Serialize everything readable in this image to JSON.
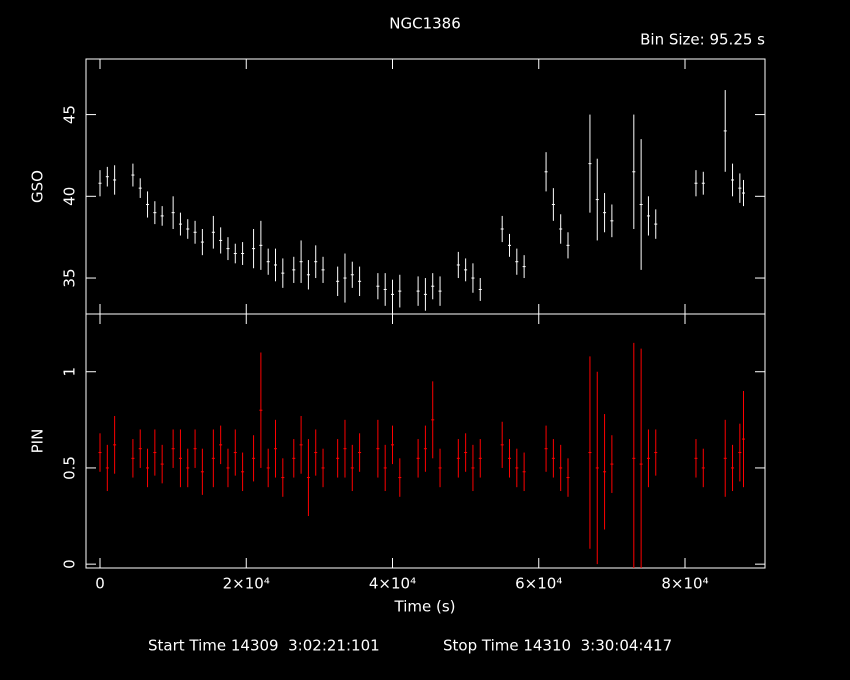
{
  "chart_data": {
    "type": "errorbar",
    "title": "NGC1386",
    "subtitle": "Bin Size: 95.25 s",
    "xlabel": "Time (s)",
    "footer": [
      "Start Time 14309  3:02:21:101",
      "Stop Time 14310  3:30:04:417"
    ],
    "xlim": [
      -1915,
      90940
    ],
    "xticks": [
      0,
      {
        "value": 20000,
        "label": "2×10⁴"
      },
      {
        "value": 40000,
        "label": "4×10⁴"
      },
      {
        "value": 60000,
        "label": "6×10⁴"
      },
      {
        "value": 80000,
        "label": "8×10⁴"
      }
    ],
    "x": [
      0,
      1000,
      2000,
      4500,
      5500,
      6500,
      7500,
      8500,
      10000,
      11000,
      12000,
      13000,
      14000,
      15500,
      16500,
      17500,
      18500,
      19500,
      21000,
      22000,
      23000,
      24000,
      25000,
      26500,
      27500,
      28500,
      29500,
      30500,
      32500,
      33500,
      34500,
      35500,
      38000,
      39000,
      40000,
      41000,
      43500,
      44500,
      45500,
      46500,
      49000,
      50000,
      51000,
      52000,
      55000,
      56000,
      57000,
      58000,
      61000,
      62000,
      63000,
      64000,
      67000,
      68000,
      69000,
      70000,
      73000,
      74000,
      75000,
      76000,
      81500,
      82500,
      85500,
      86500,
      87500,
      88000
    ],
    "panels": [
      {
        "ylabel": "GSO",
        "color": "#ffffff",
        "ylim": [
          32.8,
          48.4
        ],
        "yticks": [
          35,
          40,
          45
        ],
        "values": [
          40.8,
          41.2,
          41.0,
          41.3,
          40.5,
          39.5,
          39.0,
          38.8,
          39.0,
          38.3,
          38.0,
          37.8,
          37.2,
          37.8,
          37.3,
          36.8,
          36.5,
          36.5,
          36.8,
          37.0,
          36.0,
          35.8,
          35.3,
          35.5,
          36.0,
          35.2,
          36.0,
          35.5,
          34.8,
          35.0,
          35.2,
          34.8,
          34.5,
          34.3,
          34.0,
          34.2,
          34.2,
          34.0,
          34.5,
          34.2,
          35.8,
          35.5,
          35.0,
          34.3,
          38.0,
          37.0,
          36.0,
          35.7,
          41.5,
          39.5,
          38.0,
          37.0,
          42.0,
          39.8,
          39.0,
          38.5,
          41.5,
          39.5,
          38.8,
          38.3,
          40.8,
          40.8,
          44.0,
          41.0,
          40.5,
          40.2
        ],
        "errors": [
          0.8,
          0.6,
          0.9,
          0.7,
          0.6,
          0.8,
          0.7,
          0.6,
          1.0,
          0.7,
          0.6,
          0.7,
          0.8,
          1.0,
          0.8,
          0.7,
          0.6,
          0.7,
          1.2,
          1.5,
          0.8,
          1.0,
          0.9,
          0.8,
          1.3,
          0.9,
          1.0,
          0.8,
          0.9,
          1.5,
          0.8,
          0.9,
          0.8,
          1.0,
          0.9,
          1.0,
          0.9,
          1.0,
          0.8,
          0.9,
          0.8,
          0.7,
          0.9,
          0.7,
          0.8,
          0.7,
          0.8,
          0.7,
          1.2,
          1.0,
          0.9,
          0.8,
          3.0,
          2.5,
          1.2,
          1.0,
          3.5,
          4.0,
          1.2,
          0.9,
          0.8,
          0.7,
          2.5,
          1.0,
          0.9,
          0.8
        ]
      },
      {
        "ylabel": "PIN",
        "color": "#ff0000",
        "ylim": [
          -0.02,
          1.3
        ],
        "yticks": [
          0,
          0.5,
          1
        ],
        "values": [
          0.58,
          0.5,
          0.62,
          0.55,
          0.6,
          0.5,
          0.58,
          0.52,
          0.6,
          0.55,
          0.5,
          0.6,
          0.48,
          0.55,
          0.62,
          0.5,
          0.58,
          0.48,
          0.55,
          0.8,
          0.5,
          0.6,
          0.45,
          0.55,
          0.62,
          0.45,
          0.58,
          0.5,
          0.55,
          0.6,
          0.5,
          0.58,
          0.6,
          0.5,
          0.62,
          0.45,
          0.55,
          0.6,
          0.75,
          0.5,
          0.55,
          0.58,
          0.5,
          0.55,
          0.62,
          0.55,
          0.5,
          0.48,
          0.6,
          0.55,
          0.5,
          0.45,
          0.58,
          0.5,
          0.48,
          0.52,
          0.55,
          0.52,
          0.55,
          0.58,
          0.55,
          0.5,
          0.55,
          0.5,
          0.58,
          0.65
        ],
        "errors": [
          0.1,
          0.12,
          0.15,
          0.1,
          0.1,
          0.1,
          0.12,
          0.1,
          0.1,
          0.15,
          0.1,
          0.1,
          0.12,
          0.15,
          0.1,
          0.1,
          0.12,
          0.1,
          0.12,
          0.3,
          0.1,
          0.15,
          0.1,
          0.1,
          0.15,
          0.2,
          0.12,
          0.1,
          0.1,
          0.15,
          0.12,
          0.1,
          0.15,
          0.12,
          0.1,
          0.1,
          0.1,
          0.12,
          0.2,
          0.1,
          0.1,
          0.1,
          0.12,
          0.1,
          0.12,
          0.1,
          0.1,
          0.1,
          0.12,
          0.1,
          0.12,
          0.1,
          0.5,
          0.5,
          0.3,
          0.15,
          0.6,
          0.6,
          0.15,
          0.12,
          0.1,
          0.1,
          0.2,
          0.12,
          0.15,
          0.25
        ]
      }
    ]
  }
}
